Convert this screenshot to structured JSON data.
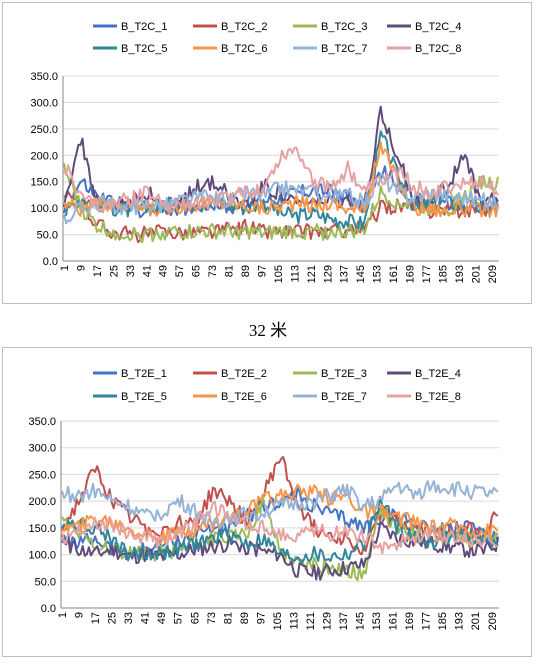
{
  "caption": "32 米",
  "chart_data": [
    {
      "type": "line",
      "legend_position": "top",
      "grid": "horizontal",
      "ylim": [
        0,
        350
      ],
      "yticks": [
        "0.0",
        "50.0",
        "100.0",
        "150.0",
        "200.0",
        "250.0",
        "300.0",
        "350.0"
      ],
      "x": [
        1,
        9,
        17,
        25,
        33,
        41,
        49,
        57,
        65,
        73,
        81,
        89,
        97,
        105,
        113,
        121,
        129,
        137,
        145,
        153,
        161,
        169,
        177,
        185,
        193,
        201,
        209
      ],
      "series": [
        {
          "name": "B_T2C_1",
          "color": "#4472c4",
          "values": [
            95,
            150,
            120,
            110,
            100,
            95,
            100,
            100,
            105,
            110,
            100,
            110,
            115,
            120,
            130,
            135,
            130,
            125,
            100,
            170,
            150,
            120,
            105,
            110,
            100,
            100,
            105
          ]
        },
        {
          "name": "B_T2C_2",
          "color": "#c0504d",
          "values": [
            120,
            110,
            70,
            55,
            50,
            50,
            55,
            55,
            55,
            55,
            60,
            65,
            55,
            55,
            55,
            55,
            55,
            60,
            60,
            100,
            105,
            100,
            95,
            100,
            95,
            100,
            100
          ]
        },
        {
          "name": "B_T2C_3",
          "color": "#9bbb59",
          "values": [
            175,
            100,
            65,
            55,
            50,
            50,
            55,
            55,
            55,
            55,
            55,
            55,
            50,
            55,
            55,
            55,
            55,
            55,
            60,
            130,
            110,
            105,
            100,
            100,
            120,
            150,
            145
          ]
        },
        {
          "name": "B_T2C_4",
          "color": "#604a7b",
          "values": [
            115,
            230,
            110,
            100,
            115,
            130,
            105,
            110,
            140,
            150,
            120,
            110,
            145,
            125,
            110,
            110,
            115,
            110,
            100,
            285,
            200,
            110,
            120,
            140,
            200,
            110,
            120
          ]
        },
        {
          "name": "B_T2C_5",
          "color": "#31869b",
          "values": [
            90,
            120,
            110,
            100,
            95,
            100,
            105,
            110,
            110,
            110,
            105,
            100,
            110,
            90,
            85,
            90,
            80,
            75,
            70,
            240,
            160,
            100,
            110,
            110,
            105,
            100,
            105
          ]
        },
        {
          "name": "B_T2C_6",
          "color": "#f79646",
          "values": [
            110,
            100,
            105,
            110,
            105,
            100,
            100,
            105,
            110,
            110,
            110,
            105,
            100,
            105,
            110,
            105,
            110,
            100,
            95,
            220,
            150,
            100,
            100,
            95,
            100,
            95,
            100
          ]
        },
        {
          "name": "B_T2C_7",
          "color": "#95b3d7",
          "values": [
            80,
            100,
            110,
            105,
            100,
            110,
            105,
            115,
            120,
            120,
            115,
            130,
            125,
            140,
            135,
            130,
            120,
            125,
            110,
            160,
            130,
            120,
            130,
            125,
            120,
            115,
            110
          ]
        },
        {
          "name": "B_T2C_8",
          "color": "#e6a1a1",
          "values": [
            185,
            120,
            105,
            110,
            115,
            130,
            110,
            105,
            110,
            115,
            120,
            130,
            140,
            200,
            215,
            150,
            140,
            175,
            130,
            150,
            170,
            140,
            130,
            140,
            145,
            150,
            130
          ]
        }
      ]
    },
    {
      "type": "line",
      "legend_position": "top",
      "grid": "horizontal",
      "ylim": [
        0,
        350
      ],
      "yticks": [
        "0.0",
        "50.0",
        "100.0",
        "150.0",
        "200.0",
        "250.0",
        "300.0",
        "350.0"
      ],
      "x": [
        1,
        9,
        17,
        25,
        33,
        41,
        49,
        57,
        65,
        73,
        81,
        89,
        97,
        105,
        113,
        121,
        129,
        137,
        145,
        153,
        161,
        169,
        177,
        185,
        193,
        201,
        209
      ],
      "series": [
        {
          "name": "B_T2E_1",
          "color": "#4472c4",
          "values": [
            130,
            120,
            130,
            110,
            105,
            110,
            120,
            125,
            140,
            150,
            150,
            170,
            190,
            200,
            210,
            190,
            175,
            165,
            150,
            170,
            170,
            160,
            150,
            145,
            150,
            140,
            135
          ]
        },
        {
          "name": "B_T2E_2",
          "color": "#c0504d",
          "values": [
            145,
            200,
            260,
            200,
            170,
            150,
            145,
            160,
            160,
            220,
            200,
            160,
            210,
            285,
            200,
            150,
            140,
            130,
            100,
            180,
            160,
            150,
            140,
            145,
            150,
            140,
            175
          ]
        },
        {
          "name": "B_T2E_3",
          "color": "#9bbb59",
          "values": [
            165,
            140,
            120,
            110,
            100,
            100,
            105,
            110,
            120,
            130,
            130,
            140,
            200,
            110,
            85,
            80,
            75,
            70,
            65,
            180,
            150,
            140,
            130,
            135,
            130,
            130,
            130
          ]
        },
        {
          "name": "B_T2E_4",
          "color": "#604a7b",
          "values": [
            125,
            110,
            100,
            110,
            95,
            100,
            95,
            100,
            110,
            115,
            120,
            115,
            105,
            100,
            70,
            65,
            70,
            75,
            80,
            150,
            130,
            125,
            120,
            115,
            110,
            105,
            120
          ]
        },
        {
          "name": "B_T2E_5",
          "color": "#31869b",
          "values": [
            160,
            160,
            150,
            130,
            100,
            100,
            105,
            110,
            120,
            130,
            140,
            120,
            130,
            100,
            95,
            100,
            95,
            100,
            120,
            200,
            150,
            130,
            125,
            130,
            135,
            130,
            125
          ]
        },
        {
          "name": "B_T2E_6",
          "color": "#f79646",
          "values": [
            150,
            150,
            170,
            160,
            150,
            140,
            130,
            140,
            150,
            160,
            170,
            180,
            200,
            210,
            220,
            215,
            205,
            210,
            180,
            180,
            170,
            160,
            150,
            155,
            150,
            145,
            145
          ]
        },
        {
          "name": "B_T2E_7",
          "color": "#95b3d7",
          "values": [
            215,
            210,
            220,
            200,
            190,
            170,
            180,
            200,
            180,
            160,
            170,
            175,
            180,
            190,
            195,
            200,
            210,
            220,
            190,
            200,
            230,
            210,
            230,
            225,
            220,
            215,
            210
          ]
        },
        {
          "name": "B_T2E_8",
          "color": "#e6a1a1",
          "values": [
            130,
            150,
            160,
            155,
            140,
            130,
            125,
            140,
            160,
            190,
            170,
            160,
            150,
            140,
            135,
            150,
            140,
            145,
            130,
            115,
            120,
            130,
            140,
            135,
            130,
            125,
            130
          ]
        }
      ]
    }
  ]
}
